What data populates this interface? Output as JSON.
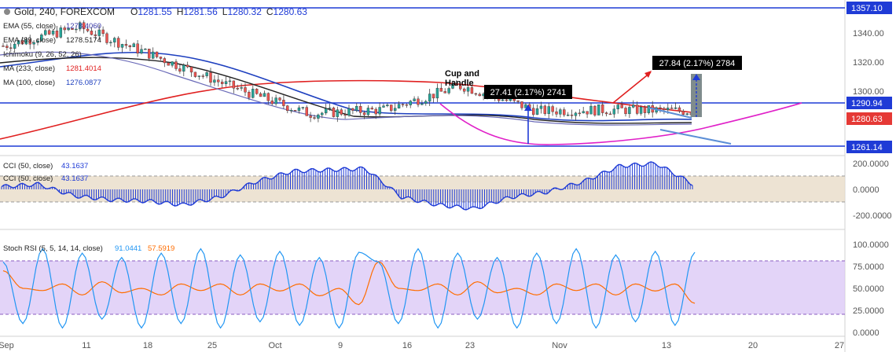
{
  "header": {
    "symbol_title": "Gold, 240, FOREXCOM",
    "ohlc": [
      {
        "label": "O",
        "value": "1281.55"
      },
      {
        "label": "H",
        "value": "1281.56"
      },
      {
        "label": "L",
        "value": "1280.32"
      },
      {
        "label": "C",
        "value": "1280.63"
      }
    ]
  },
  "indicators": [
    {
      "label": "EMA (55, close)",
      "value": "1278.4060",
      "color": "#3a3aa8"
    },
    {
      "label": "EMA (89, close)",
      "value": "1278.5174",
      "color": "#222222"
    },
    {
      "label": "Ichimoku (9, 26, 52, 26)",
      "value": "",
      "color": "#888888"
    },
    {
      "label": "MA (233, close)",
      "value": "1281.4014",
      "color": "#e02020"
    },
    {
      "label": "MA (100, close)",
      "value": "1276.0877",
      "color": "#1d3fbf"
    }
  ],
  "cci_legend": [
    {
      "label": "CCI (50, close)",
      "value": "43.1637"
    },
    {
      "label": "CCI (50, close)",
      "value": "43.1637"
    }
  ],
  "stoch_legend": {
    "label": "Stoch RSI (5, 5, 14, 14, close)",
    "k": "91.0441",
    "d": "57.5919",
    "k_color": "#2196f3",
    "d_color": "#ff6d00"
  },
  "annotations": {
    "pattern": "Cup and Handle",
    "measure_left": "27.41 (2.17%) 2741",
    "measure_right": "27.84 (2.17%) 2784"
  },
  "price_axis": {
    "ticks": [
      "1340.00",
      "1320.00",
      "1300.00",
      "1280.00"
    ],
    "boxes": [
      {
        "label": "1357.10",
        "value": 1357.1,
        "color": "#1f3bd6"
      },
      {
        "label": "1290.94",
        "value": 1290.94,
        "color": "#1f3bd6"
      },
      {
        "label": "1280.63",
        "value": 1280.63,
        "color": "#e53935"
      },
      {
        "label": "1261.14",
        "value": 1261.14,
        "color": "#1f3bd6"
      }
    ]
  },
  "cci_axis": {
    "ticks": [
      "200.0000",
      "0.0000",
      "-200.0000"
    ]
  },
  "stoch_axis": {
    "ticks": [
      "100.0000",
      "75.0000",
      "50.0000",
      "25.0000",
      "0.0000"
    ]
  },
  "time_axis": {
    "labels": [
      "Sep",
      "11",
      "18",
      "25",
      "Oct",
      "9",
      "16",
      "23",
      "Nov",
      "13",
      "20",
      "27"
    ]
  },
  "chart_data": [
    {
      "type": "line",
      "title": "Gold, 240, FOREXCOM",
      "ylim": [
        1252,
        1362
      ],
      "horizontal_levels": [
        1357.1,
        1290.94,
        1261.14
      ],
      "series": [
        {
          "name": "Gold",
          "x": [
            "Sep",
            "11",
            "18",
            "25",
            "Oct",
            "9",
            "16",
            "23",
            "Nov",
            "13"
          ],
          "values": [
            1331,
            1345,
            1323,
            1300,
            1280,
            1283,
            1301,
            1282,
            1283,
            1282
          ]
        },
        {
          "name": "MA (233, close)",
          "values": [
            1260,
            1282,
            1296,
            1304,
            1306,
            1305,
            1302,
            1294,
            1285,
            1281
          ]
        },
        {
          "name": "MA (100, close)",
          "values": [
            1314,
            1318,
            1318,
            1306,
            1290,
            1290,
            1288,
            1283,
            1280,
            1278
          ]
        },
        {
          "name": "EMA (89, close)",
          "values": [
            1316,
            1315,
            1310,
            1298,
            1285,
            1287,
            1291,
            1283,
            1280,
            1278
          ]
        }
      ]
    },
    {
      "type": "bar",
      "title": "CCI (50, close)",
      "ylim": [
        -250,
        250
      ],
      "series": [
        {
          "name": "CCI (50, close)",
          "values": [
            20,
            40,
            -50,
            -80,
            -90,
            -120,
            -60,
            60,
            140,
            150,
            160,
            -60,
            -120,
            -150,
            -60,
            -20,
            60,
            180,
            200,
            43
          ]
        }
      ]
    },
    {
      "type": "line",
      "title": "Stoch RSI (5, 5, 14, 14, close)",
      "ylim": [
        0,
        100
      ],
      "series": [
        {
          "name": "K",
          "values": [
            80,
            10,
            95,
            5,
            90,
            15,
            85,
            5,
            90,
            10,
            95,
            5,
            88,
            12,
            92,
            8,
            85,
            5,
            91
          ]
        },
        {
          "name": "D",
          "values": [
            70,
            20,
            85,
            15,
            80,
            25,
            75,
            15,
            80,
            20,
            85,
            15,
            80,
            22,
            82,
            18,
            75,
            15,
            58
          ]
        }
      ]
    }
  ]
}
